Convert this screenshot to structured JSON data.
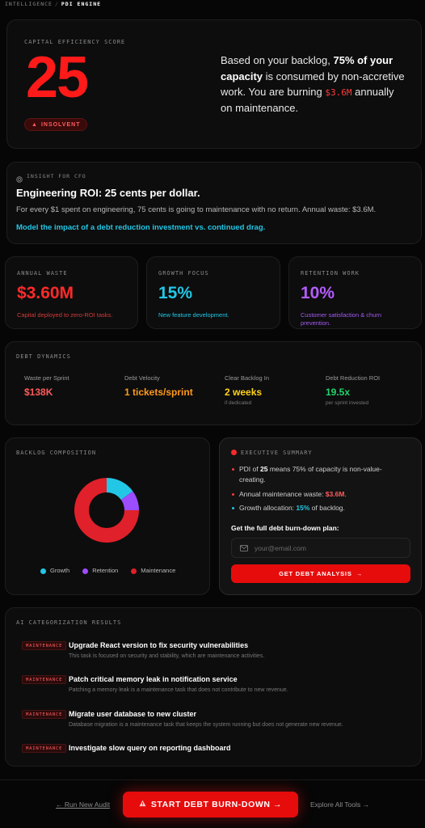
{
  "breadcrumb": {
    "parent": "INTELLIGENCE",
    "separator": "/",
    "current": "PDI ENGINE"
  },
  "score": {
    "label": "CAPITAL EFFICIENCY SCORE",
    "value": "25",
    "badge": "INSOLVENT",
    "desc_pre": "Based on your backlog, ",
    "desc_bold": "75% of your capacity",
    "desc_mid": " is consumed by non-accretive work. You are burning ",
    "desc_amount": "$3.6M",
    "desc_post": " annually on maintenance."
  },
  "insight": {
    "label": "INSIGHT FOR CFO",
    "title": "Engineering ROI: 25 cents per dollar.",
    "body": "For every $1 spent on engineering, 75 cents is going to maintenance with no return. Annual waste: $3.6M.",
    "link": "Model the impact of a debt reduction investment vs. continued drag."
  },
  "stats": [
    {
      "label": "ANNUAL WASTE",
      "value": "$3.60M",
      "sub": "Capital deployed to zero-ROI tasks.",
      "color": "#ff2a2a",
      "sub_color": "#d43a3a"
    },
    {
      "label": "GROWTH FOCUS",
      "value": "15%",
      "sub": "New feature development.",
      "color": "#22c7e6",
      "sub_color": "#22c7e6"
    },
    {
      "label": "RETENTION WORK",
      "value": "10%",
      "sub": "Customer satisfaction & churn prevention.",
      "color": "#b45cff",
      "sub_color": "#a35cf0"
    }
  ],
  "dynamics": {
    "label": "DEBT DYNAMICS",
    "items": [
      {
        "title": "Waste per Sprint",
        "value": "$138K",
        "sub": "",
        "color": "#ff5c5c"
      },
      {
        "title": "Debt Velocity",
        "value": "1 tickets/sprint",
        "sub": "",
        "color": "#ff9a1a"
      },
      {
        "title": "Clear Backlog In",
        "value": "2 weeks",
        "sub": "if dedicated",
        "color": "#ffd21a"
      },
      {
        "title": "Debt Reduction ROI",
        "value": "19.5x",
        "sub": "per sprint invested",
        "color": "#22d36a"
      }
    ]
  },
  "composition": {
    "label": "BACKLOG COMPOSITION",
    "segments": [
      {
        "name": "Growth",
        "value": 15,
        "color": "#22c7e6"
      },
      {
        "name": "Retention",
        "value": 10,
        "color": "#9b4dff"
      },
      {
        "name": "Maintenance",
        "value": 75,
        "color": "#e0202a"
      }
    ]
  },
  "executive": {
    "label": "EXECUTIVE SUMMARY",
    "item1_pre": "PDI of ",
    "item1_bold": "25",
    "item1_post": " means 75% of capacity is non-value-creating.",
    "item2_pre": "Annual maintenance waste: ",
    "item2_val": "$3.6M",
    "item2_post": ".",
    "item3_pre": "Growth allocation: ",
    "item3_val": "15%",
    "item3_post": " of backlog.",
    "plan_label": "Get the full debt burn-down plan:",
    "email_placeholder": "your@email.com",
    "button": "GET DEBT ANALYSIS"
  },
  "ai": {
    "label": "AI CATEGORIZATION RESULTS",
    "items": [
      {
        "tag": "MAINTENANCE",
        "title": "Upgrade React version to fix security vulnerabilities",
        "desc": "This task is focused on security and stability, which are maintenance activities."
      },
      {
        "tag": "MAINTENANCE",
        "title": "Patch critical memory leak in notification service",
        "desc": "Patching a memory leak is a maintenance task that does not contribute to new revenue."
      },
      {
        "tag": "MAINTENANCE",
        "title": "Migrate user database to new cluster",
        "desc": "Database migration is a maintenance task that keeps the system running but does not generate new revenue."
      },
      {
        "tag": "MAINTENANCE",
        "title": "Investigate slow query on reporting dashboard",
        "desc": ""
      }
    ]
  },
  "footer": {
    "run_new": "← Run New Audit",
    "start": "START DEBT BURN-DOWN →",
    "explore": "Explore All Tools →"
  }
}
